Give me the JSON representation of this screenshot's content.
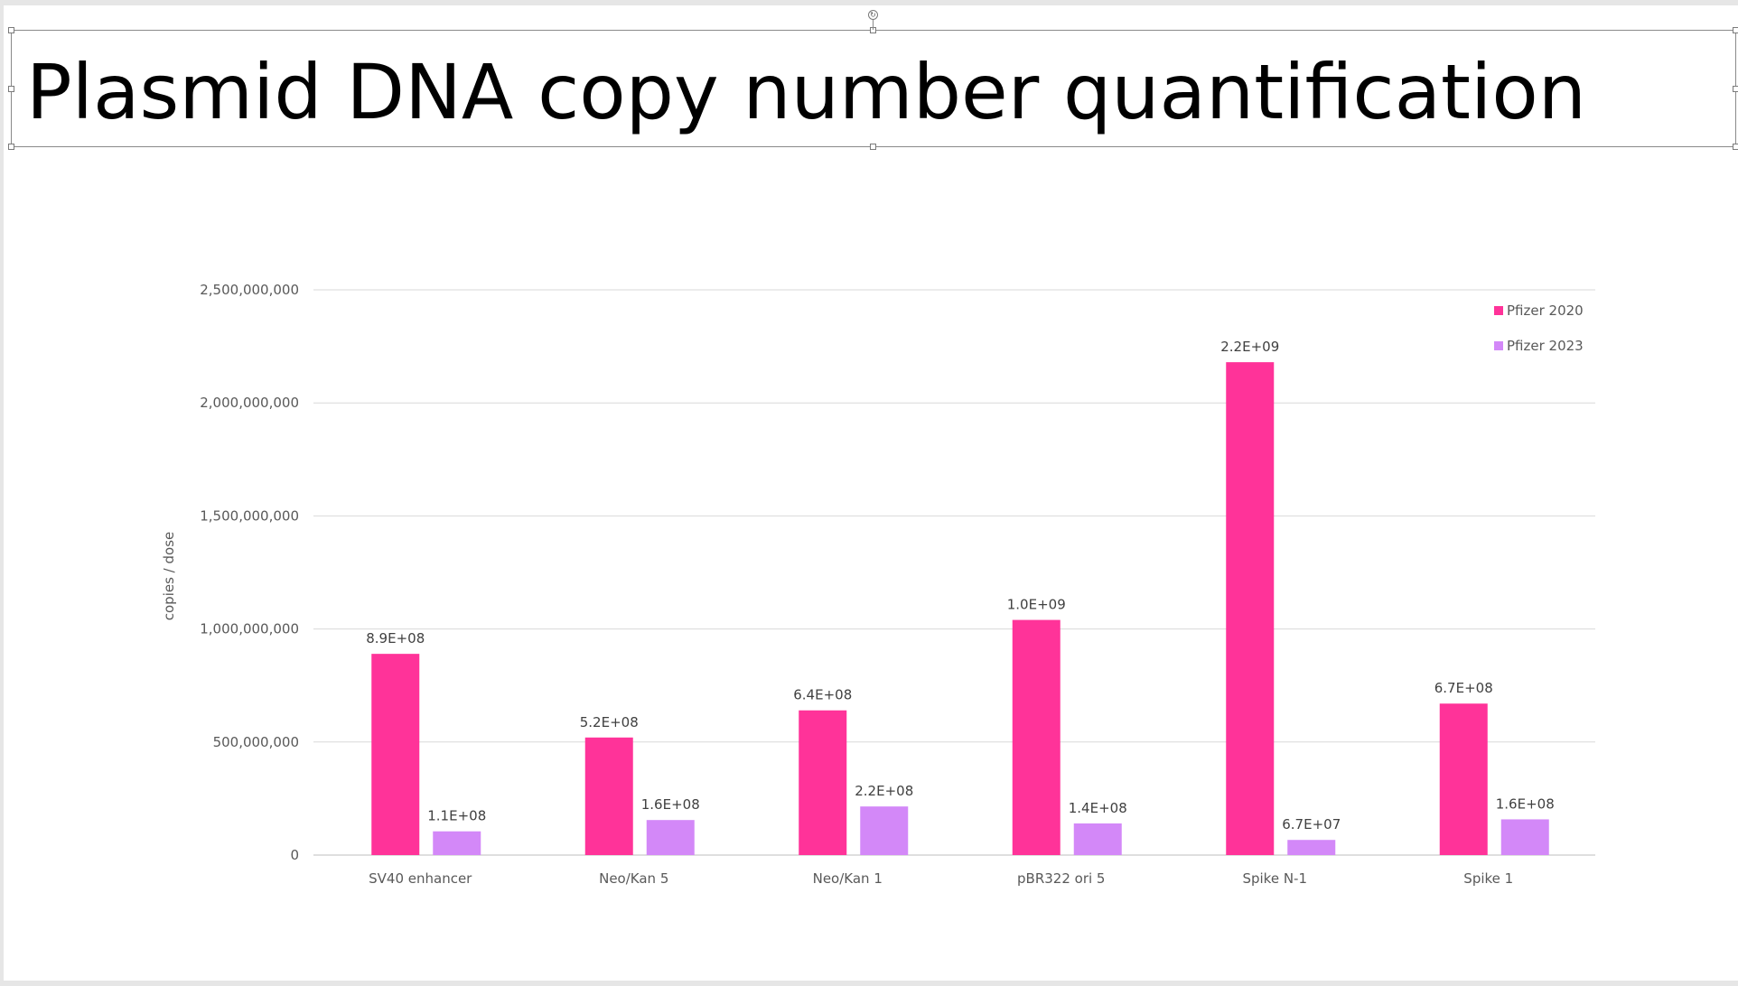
{
  "slide": {
    "title": "Plasmid DNA copy number quantification"
  },
  "chart_data": {
    "type": "bar",
    "ylabel": "copies / dose",
    "ylim": [
      0,
      2500000000
    ],
    "yticks": [
      0,
      500000000,
      1000000000,
      1500000000,
      2000000000,
      2500000000
    ],
    "ytick_labels": [
      "0",
      "500,000,000",
      "1,000,000,000",
      "1,500,000,000",
      "2,000,000,000",
      "2,500,000,000"
    ],
    "grid": true,
    "legend_position": "top-right",
    "categories": [
      "SV40 enhancer",
      "Neo/Kan 5",
      "Neo/Kan 1",
      "pBR322 ori 5",
      "Spike N-1",
      "Spike 1"
    ],
    "series": [
      {
        "name": "Pfizer 2020",
        "color": "#ff3399",
        "values": [
          890000000,
          520000000,
          640000000,
          1040000000,
          2180000000,
          670000000
        ],
        "labels": [
          "8.9E+08",
          "5.2E+08",
          "6.4E+08",
          "1.0E+09",
          "2.2E+09",
          "6.7E+08"
        ]
      },
      {
        "name": "Pfizer 2023",
        "color": "#d388f8",
        "values": [
          105000000,
          155000000,
          215000000,
          140000000,
          67000000,
          158000000
        ],
        "labels": [
          "1.1E+08",
          "1.6E+08",
          "2.2E+08",
          "1.4E+08",
          "6.7E+07",
          "1.6E+08"
        ]
      }
    ]
  }
}
